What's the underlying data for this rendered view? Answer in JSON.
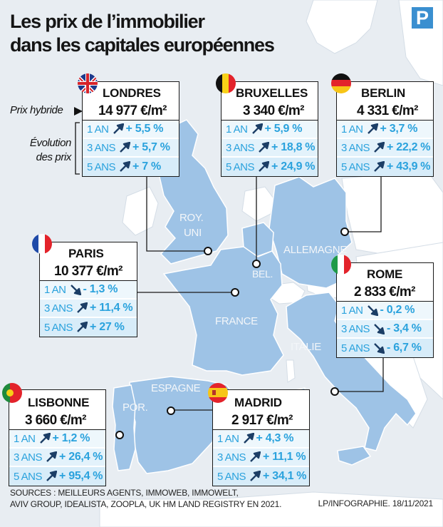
{
  "title": {
    "line1": "Les prix de l’immobilier",
    "line2": "dans les capitales européennes"
  },
  "logo": "P",
  "legend": {
    "price_label": "Prix hybride",
    "evolution_label_1": "Évolution",
    "evolution_label_2": "des prix"
  },
  "countries": {
    "uk": "ROY.",
    "uk2": "UNI",
    "germany": "ALLEMAGNE",
    "belgium": "BEL.",
    "france": "FRANCE",
    "italy": "ITALIE",
    "spain": "ESPAGNE",
    "portugal": "POR."
  },
  "cities": [
    {
      "name": "LONDRES",
      "price": "14 977 €/m²",
      "rows": [
        {
          "period": "1 AN",
          "dir": "up",
          "value": "+ 5,5 %"
        },
        {
          "period": "3 ANS",
          "dir": "up",
          "value": "+ 5,7 %"
        },
        {
          "period": "5 ANS",
          "dir": "up",
          "value": "+ 7 %"
        }
      ]
    },
    {
      "name": "BRUXELLES",
      "price": "3 340 €/m²",
      "rows": [
        {
          "period": "1 AN",
          "dir": "up",
          "value": "+ 5,9 %"
        },
        {
          "period": "3 ANS",
          "dir": "up",
          "value": "+ 18,8 %"
        },
        {
          "period": "5 ANS",
          "dir": "up",
          "value": "+ 24,9 %"
        }
      ]
    },
    {
      "name": "BERLIN",
      "price": "4 331 €/m²",
      "rows": [
        {
          "period": "1 AN",
          "dir": "up",
          "value": "+ 3,7 %"
        },
        {
          "period": "3 ANS",
          "dir": "up",
          "value": "+ 22,2 %"
        },
        {
          "period": "5 ANS",
          "dir": "up",
          "value": "+ 43,9 %"
        }
      ]
    },
    {
      "name": "PARIS",
      "price": "10 377 €/m²",
      "rows": [
        {
          "period": "1 AN",
          "dir": "down",
          "value": "- 1,3 %"
        },
        {
          "period": "3 ANS",
          "dir": "up",
          "value": "+ 11,4 %"
        },
        {
          "period": "5 ANS",
          "dir": "up",
          "value": "+ 27 %"
        }
      ]
    },
    {
      "name": "ROME",
      "price": "2 833 €/m²",
      "rows": [
        {
          "period": "1 AN",
          "dir": "down",
          "value": "- 0,2 %"
        },
        {
          "period": "3 ANS",
          "dir": "down",
          "value": "- 3,4 %"
        },
        {
          "period": "5 ANS",
          "dir": "down",
          "value": "- 6,7 %"
        }
      ]
    },
    {
      "name": "LISBONNE",
      "price": "3 660 €/m²",
      "rows": [
        {
          "period": "1 AN",
          "dir": "up",
          "value": "+ 1,2 %"
        },
        {
          "period": "3 ANS",
          "dir": "up",
          "value": "+ 26,4 %"
        },
        {
          "period": "5 ANS",
          "dir": "up",
          "value": "+ 95,4 %"
        }
      ]
    },
    {
      "name": "MADRID",
      "price": "2 917 €/m²",
      "rows": [
        {
          "period": "1 AN",
          "dir": "up",
          "value": "+ 4,3 %"
        },
        {
          "period": "3 ANS",
          "dir": "up",
          "value": "+ 11,1 %"
        },
        {
          "period": "5 ANS",
          "dir": "up",
          "value": "+ 34,1 %"
        }
      ]
    }
  ],
  "sources": {
    "line1": "SOURCES : MEILLEURS AGENTS, IMMOWEB, IMMOWELT,",
    "line2": "AVIV GROUP, IDEALISTA, ZOOPLA, UK HM LAND REGISTRY EN 2021."
  },
  "credit": "LP/INFOGRAPHIE.  18/11/2021",
  "colors": {
    "land": "#9ec3e6",
    "other_land": "#ffffff",
    "sea": "#e8edf2",
    "accent": "#2aa2dd"
  }
}
